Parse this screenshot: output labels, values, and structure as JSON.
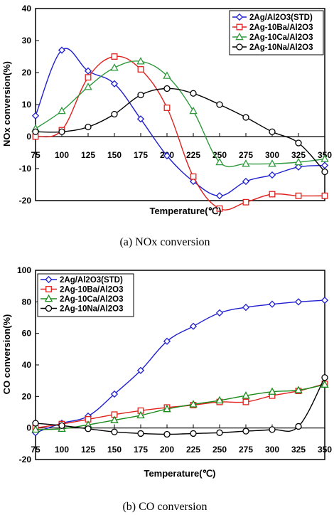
{
  "chart_data": [
    {
      "type": "line",
      "caption": "(a)  NOx  conversion",
      "xlabel": "Temperature(℃)",
      "ylabel": "NOx conversion(%)",
      "x": [
        75,
        100,
        125,
        150,
        175,
        200,
        225,
        250,
        275,
        300,
        325,
        350
      ],
      "xticks": [
        "75",
        "100",
        "125",
        "150",
        "175",
        "200",
        "225",
        "250",
        "275",
        "300",
        "325",
        "350"
      ],
      "ylim": [
        -20,
        40
      ],
      "yticks": [
        -20,
        -10,
        0,
        10,
        20,
        30,
        40
      ],
      "legend_position": "top-right",
      "series": [
        {
          "name": "2Ag/Al2O3(STD)",
          "color": "#1f1fd0",
          "marker": "diamond",
          "x": [
            75,
            100,
            125,
            150,
            175,
            200,
            225,
            250,
            275,
            300,
            325,
            350
          ],
          "values": [
            6.5,
            27,
            20.5,
            16.5,
            5.5,
            -6,
            -14,
            -18.5,
            -14,
            -12,
            -9.5,
            -9
          ]
        },
        {
          "name": "2Ag-10Ba/Al2O3",
          "color": "#e0201c",
          "marker": "square",
          "x": [
            75,
            100,
            125,
            150,
            175,
            200,
            225,
            250,
            275,
            300,
            325,
            350
          ],
          "values": [
            0,
            2,
            18.5,
            25,
            21,
            9,
            -12.5,
            -22.5,
            -20.5,
            -18,
            -18.5,
            -18.5
          ]
        },
        {
          "name": "2Ag-10Ca/Al2O3",
          "color": "#2e9a3c",
          "marker": "triangle",
          "x": [
            75,
            100,
            125,
            150,
            175,
            200,
            225,
            250,
            275,
            300,
            325,
            350
          ],
          "values": [
            2.5,
            8,
            15.5,
            21.5,
            23.5,
            19,
            8,
            -8,
            -8.5,
            -8.5,
            -8,
            -7
          ]
        },
        {
          "name": "2Ag-10Na/Al2O3",
          "color": "#000000",
          "marker": "circle",
          "x": [
            75,
            100,
            125,
            150,
            175,
            200,
            225,
            250,
            275,
            300,
            325,
            350
          ],
          "values": [
            1.5,
            1.5,
            3,
            7,
            13,
            15,
            13.5,
            10,
            6,
            1.5,
            -2,
            -11
          ]
        }
      ]
    },
    {
      "type": "line",
      "caption": "(b)  CO  conversion",
      "xlabel": "Temperature(℃)",
      "ylabel": "CO conversion(%)",
      "x": [
        75,
        100,
        125,
        150,
        175,
        200,
        225,
        250,
        275,
        300,
        325,
        350
      ],
      "xticks": [
        "75",
        "100",
        "125",
        "150",
        "175",
        "200",
        "225",
        "250",
        "275",
        "300",
        "325",
        "350"
      ],
      "ylim": [
        -20,
        100
      ],
      "yticks": [
        -20,
        0,
        20,
        40,
        60,
        80,
        100
      ],
      "legend_position": "top-left",
      "series": [
        {
          "name": "2Ag/Al2O3(STD)",
          "color": "#1f1fd0",
          "marker": "diamond",
          "x": [
            75,
            100,
            125,
            150,
            175,
            200,
            225,
            250,
            275,
            300,
            325,
            350
          ],
          "values": [
            -3,
            3,
            7.5,
            21.5,
            36.5,
            55,
            64.5,
            73,
            76.5,
            78.5,
            80,
            81
          ]
        },
        {
          "name": "2Ag-10Ba/Al2O3",
          "color": "#e0201c",
          "marker": "square",
          "x": [
            75,
            100,
            125,
            150,
            175,
            200,
            225,
            250,
            275,
            300,
            325,
            350
          ],
          "values": [
            0,
            2.5,
            5.5,
            8.5,
            11,
            13,
            14.5,
            16.5,
            16.5,
            20.5,
            23.5,
            28
          ]
        },
        {
          "name": "2Ag-10Ca/Al2O3",
          "color": "#1a8a1a",
          "marker": "triangle",
          "x": [
            75,
            100,
            125,
            150,
            175,
            200,
            225,
            250,
            275,
            300,
            325,
            350
          ],
          "values": [
            -1,
            -0.5,
            2,
            5,
            8,
            12,
            15,
            17.5,
            20.5,
            23,
            24,
            27.5
          ]
        },
        {
          "name": "2Ag-10Na/Al2O3",
          "color": "#000000",
          "marker": "circle",
          "x": [
            75,
            100,
            125,
            150,
            175,
            200,
            225,
            250,
            275,
            300,
            325,
            350
          ],
          "values": [
            3,
            1.5,
            -0.5,
            -2.5,
            -3.5,
            -4,
            -3.5,
            -3,
            -2,
            -1,
            1,
            32
          ]
        }
      ]
    }
  ]
}
